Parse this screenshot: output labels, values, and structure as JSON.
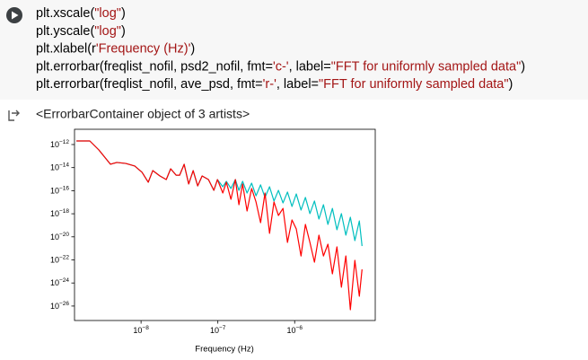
{
  "code": {
    "lines": [
      [
        {
          "text": "plt.xscale(",
          "color": "#000000"
        },
        {
          "text": "\"log\"",
          "color": "#a31515"
        },
        {
          "text": ")",
          "color": "#000000"
        }
      ],
      [
        {
          "text": "plt.yscale(",
          "color": "#000000"
        },
        {
          "text": "\"log\"",
          "color": "#a31515"
        },
        {
          "text": ")",
          "color": "#000000"
        }
      ],
      [
        {
          "text": "plt.xlabel(r",
          "color": "#000000"
        },
        {
          "text": "'Frequency (Hz)'",
          "color": "#a31515"
        },
        {
          "text": ")",
          "color": "#000000"
        }
      ],
      [
        {
          "text": "plt.errorbar(freqlist_nofil, psd2_nofil, fmt=",
          "color": "#000000"
        },
        {
          "text": "'c-'",
          "color": "#a31515"
        },
        {
          "text": ", label=",
          "color": "#000000"
        },
        {
          "text": "\"FFT for uniformly sampled data\"",
          "color": "#a31515"
        },
        {
          "text": ")",
          "color": "#000000"
        }
      ],
      [
        {
          "text": "plt.errorbar(freqlist_nofil, ave_psd, fmt=",
          "color": "#000000"
        },
        {
          "text": "'r-'",
          "color": "#a31515"
        },
        {
          "text": ", label=",
          "color": "#000000"
        },
        {
          "text": "\"FFT for uniformly sampled data\"",
          "color": "#a31515"
        },
        {
          "text": ")",
          "color": "#000000"
        }
      ]
    ]
  },
  "output": {
    "text": "<ErrorbarContainer object of 3 artists>"
  },
  "chart_data": {
    "type": "line",
    "xlabel": "Frequency (Hz)",
    "xscale": "log",
    "yscale": "log",
    "xlim": [
      1.36e-09,
      1.12e-05
    ],
    "ylim": [
      5.6e-28,
      2.1e-11
    ],
    "xticks": [
      {
        "value": 1e-08,
        "label": "10",
        "label_exponent": "−8"
      },
      {
        "value": 1e-07,
        "label": "10",
        "label_exponent": "−7"
      },
      {
        "value": 1e-06,
        "label": "10",
        "label_exponent": "−6"
      }
    ],
    "yticks": [
      {
        "value": 1e-12,
        "label": "10",
        "label_exponent": "−12"
      },
      {
        "value": 1e-14,
        "label": "10",
        "label_exponent": "−14"
      },
      {
        "value": 1e-16,
        "label": "10",
        "label_exponent": "−16"
      },
      {
        "value": 1e-18,
        "label": "10",
        "label_exponent": "−18"
      },
      {
        "value": 1e-20,
        "label": "10",
        "label_exponent": "−20"
      },
      {
        "value": 1e-22,
        "label": "10",
        "label_exponent": "−22"
      },
      {
        "value": 1e-24,
        "label": "10",
        "label_exponent": "−24"
      },
      {
        "value": 1e-26,
        "label": "10",
        "label_exponent": "−26"
      }
    ],
    "x": [
      1.44e-09,
      2.15e-09,
      2.82e-09,
      4e-09,
      4.83e-09,
      6.33e-09,
      8.28e-09,
      1.03e-08,
      1.24e-08,
      1.42e-08,
      1.76e-08,
      2.13e-08,
      2.43e-08,
      2.86e-08,
      3.18e-08,
      3.64e-08,
      4.17e-08,
      4.77e-08,
      5.46e-08,
      6.24e-08,
      7.54e-08,
      8.86e-08,
      9.87e-08,
      1.16e-07,
      1.29e-07,
      1.48e-07,
      1.69e-07,
      1.88e-07,
      2.1e-07,
      2.4e-07,
      2.75e-07,
      3.14e-07,
      3.6e-07,
      4.11e-07,
      4.71e-07,
      5.38e-07,
      6.15e-07,
      7.05e-07,
      8.06e-07,
      9.23e-07,
      1.05e-06,
      1.21e-06,
      1.38e-06,
      1.58e-06,
      1.81e-06,
      2.07e-06,
      2.37e-06,
      2.71e-06,
      3.1e-06,
      3.55e-06,
      4.06e-06,
      4.64e-06,
      5.31e-06,
      6.08e-06,
      6.95e-06,
      7.54e-06
    ],
    "series": [
      {
        "color": "#00bfbf",
        "values": [
          2.05e-12,
          2.05e-12,
          3.4e-13,
          1.95e-14,
          2.8e-14,
          2.3e-14,
          1.36e-14,
          3.9e-15,
          5.4e-16,
          5.5e-15,
          1.9e-15,
          9.2e-16,
          7.9e-15,
          2.2e-15,
          2.2e-15,
          1.95e-14,
          3.8e-16,
          5.5e-15,
          2.6e-16,
          1.9e-15,
          9.2e-16,
          1.07e-16,
          9.2e-16,
          2.2e-16,
          6.5e-16,
          1.55e-16,
          9.2e-16,
          1.07e-16,
          6.5e-16,
          6.3e-17,
          4.5e-16,
          3.6e-17,
          3.2e-16,
          2.6e-17,
          2.2e-16,
          1.27e-17,
          1.07e-16,
          8.7e-18,
          7.6e-17,
          4.3e-18,
          5.2e-17,
          2.1e-18,
          2.6e-17,
          1.03e-18,
          1.27e-17,
          3.5e-19,
          6.1e-18,
          1.2e-19,
          2.9e-18,
          4.1e-20,
          1.03e-18,
          1.4e-20,
          5e-19,
          4.7e-21,
          2.4e-19,
          1.6e-21
        ]
      },
      {
        "color": "#ff0000",
        "values": [
          2.05e-12,
          2.05e-12,
          3.4e-13,
          1.95e-14,
          2.8e-14,
          2.3e-14,
          1.36e-14,
          3.9e-15,
          5.4e-16,
          5.5e-15,
          1.9e-15,
          9.2e-16,
          7.9e-15,
          2.2e-15,
          2.2e-15,
          1.95e-14,
          3.8e-16,
          5.5e-15,
          2.6e-16,
          1.9e-15,
          9.2e-16,
          1.07e-16,
          9.2e-16,
          6.3e-17,
          5.4e-16,
          1.8e-17,
          9.2e-16,
          6.1e-18,
          3.8e-16,
          1.75e-18,
          1.55e-16,
          1.05e-17,
          1.7e-19,
          6.3e-17,
          2e-20,
          1.05e-17,
          7.1e-19,
          2.9e-18,
          3.3e-21,
          2.9e-19,
          4.8e-20,
          2.2e-22,
          1.2e-19,
          3.3e-21,
          6.4e-23,
          1.4e-20,
          2.2e-22,
          2.3e-21,
          6.2e-24,
          1.35e-21,
          4.3e-25,
          2.2e-22,
          4.8e-27,
          9.1e-23,
          7.1e-26,
          1.5e-23
        ]
      }
    ]
  }
}
